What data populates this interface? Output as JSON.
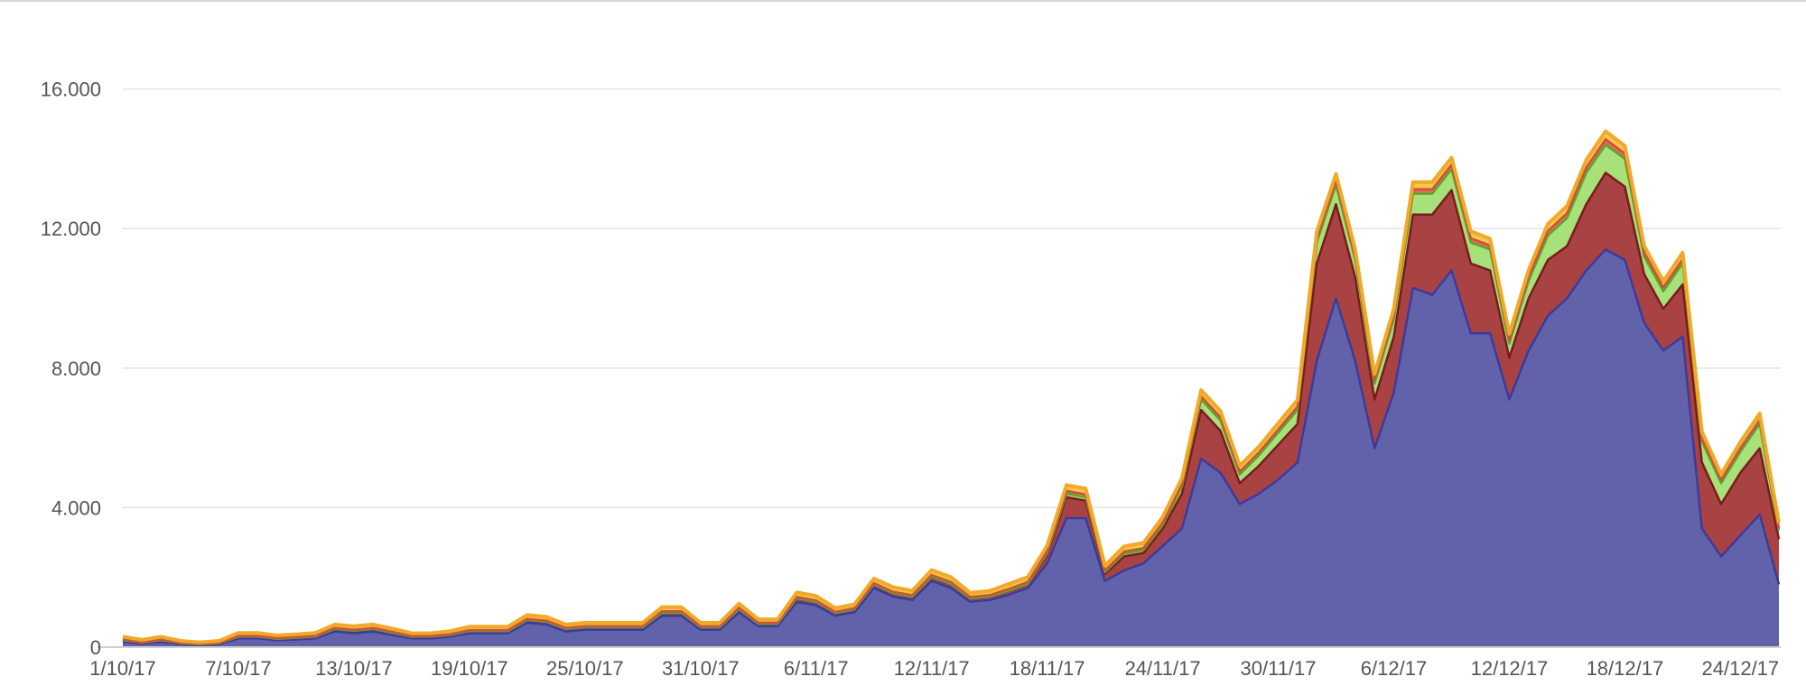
{
  "chart_data": {
    "type": "area",
    "stacked": true,
    "grid": true,
    "legend": "none",
    "ylim": [
      0,
      17000
    ],
    "y_ticks": [
      0,
      4000,
      8000,
      12000,
      16000
    ],
    "y_tick_labels": [
      "0",
      "4.000",
      "8.000",
      "12.000",
      "16.000"
    ],
    "x_tick_labels": [
      "1/10/17",
      "7/10/17",
      "13/10/17",
      "19/10/17",
      "25/10/17",
      "31/10/17",
      "6/11/17",
      "12/11/17",
      "18/11/17",
      "24/11/17",
      "30/11/17",
      "6/12/17",
      "12/12/17",
      "18/12/17",
      "24/12/17"
    ],
    "x_tick_index": [
      0,
      6,
      12,
      18,
      24,
      30,
      36,
      42,
      48,
      54,
      60,
      66,
      72,
      78,
      84
    ],
    "x": [
      "1/10/17",
      "2/10/17",
      "3/10/17",
      "4/10/17",
      "5/10/17",
      "6/10/17",
      "7/10/17",
      "8/10/17",
      "9/10/17",
      "10/10/17",
      "11/10/17",
      "12/10/17",
      "13/10/17",
      "14/10/17",
      "15/10/17",
      "16/10/17",
      "17/10/17",
      "18/10/17",
      "19/10/17",
      "20/10/17",
      "21/10/17",
      "22/10/17",
      "23/10/17",
      "24/10/17",
      "25/10/17",
      "26/10/17",
      "27/10/17",
      "28/10/17",
      "29/10/17",
      "30/10/17",
      "31/10/17",
      "1/11/17",
      "2/11/17",
      "3/11/17",
      "4/11/17",
      "5/11/17",
      "6/11/17",
      "7/11/17",
      "8/11/17",
      "9/11/17",
      "10/11/17",
      "11/11/17",
      "12/11/17",
      "13/11/17",
      "14/11/17",
      "15/11/17",
      "16/11/17",
      "17/11/17",
      "18/11/17",
      "19/11/17",
      "20/11/17",
      "21/11/17",
      "22/11/17",
      "23/11/17",
      "24/11/17",
      "25/11/17",
      "26/11/17",
      "27/11/17",
      "28/11/17",
      "29/11/17",
      "30/11/17",
      "1/12/17",
      "2/12/17",
      "3/12/17",
      "4/12/17",
      "5/12/17",
      "6/12/17",
      "7/12/17",
      "8/12/17",
      "9/12/17",
      "10/12/17",
      "11/12/17",
      "12/12/17",
      "13/12/17",
      "14/12/17",
      "15/12/17",
      "16/12/17",
      "17/12/17",
      "18/12/17",
      "19/12/17",
      "20/12/17",
      "21/12/17",
      "22/12/17",
      "23/12/17",
      "24/12/17",
      "25/12/17",
      "26/12/17"
    ],
    "series": [
      {
        "color": "#6262aa",
        "line_color": "#3b3b9e",
        "values": [
          150,
          100,
          150,
          80,
          60,
          80,
          250,
          250,
          200,
          220,
          250,
          450,
          400,
          450,
          350,
          250,
          250,
          300,
          400,
          400,
          400,
          700,
          650,
          450,
          500,
          500,
          500,
          500,
          900,
          900,
          500,
          500,
          1000,
          600,
          600,
          1300,
          1200,
          900,
          1000,
          1700,
          1450,
          1350,
          1900,
          1700,
          1300,
          1350,
          1500,
          1700,
          2400,
          3700,
          3700,
          1900,
          2200,
          2400,
          2900,
          3400,
          5400,
          5000,
          4100,
          4400,
          4800,
          5300,
          8200,
          10000,
          8200,
          5700,
          7300,
          10300,
          10100,
          10800,
          9000,
          9000,
          7100,
          8500,
          9500,
          10000,
          10800,
          11400,
          11100,
          9300,
          8500,
          8900,
          3400,
          2600,
          3200,
          3800,
          1800
        ]
      },
      {
        "color": "#a94242",
        "line_color": "#7a1c1c",
        "values": [
          50,
          30,
          50,
          30,
          20,
          30,
          50,
          50,
          40,
          50,
          50,
          70,
          70,
          70,
          60,
          50,
          50,
          50,
          60,
          60,
          60,
          80,
          80,
          70,
          70,
          70,
          70,
          70,
          90,
          90,
          70,
          70,
          90,
          70,
          70,
          100,
          100,
          80,
          90,
          100,
          100,
          100,
          120,
          120,
          100,
          100,
          120,
          120,
          250,
          600,
          500,
          200,
          400,
          300,
          500,
          1000,
          1400,
          1200,
          600,
          800,
          1000,
          1100,
          2800,
          2700,
          2400,
          1400,
          1600,
          2100,
          2300,
          2300,
          2000,
          1800,
          1200,
          1500,
          1600,
          1500,
          1900,
          2200,
          2100,
          1400,
          1200,
          1500,
          1900,
          1500,
          1800,
          1900,
          1300
        ]
      },
      {
        "color": "#a8e07a",
        "line_color": "#5aa72c",
        "values": [
          0,
          0,
          0,
          0,
          0,
          0,
          0,
          0,
          0,
          0,
          0,
          0,
          0,
          0,
          0,
          0,
          0,
          0,
          0,
          0,
          0,
          0,
          0,
          0,
          0,
          0,
          0,
          0,
          0,
          0,
          0,
          0,
          0,
          0,
          0,
          0,
          0,
          0,
          0,
          0,
          0,
          0,
          0,
          0,
          0,
          0,
          0,
          0,
          50,
          100,
          100,
          50,
          80,
          80,
          100,
          200,
          300,
          300,
          250,
          300,
          350,
          400,
          600,
          550,
          500,
          450,
          500,
          600,
          600,
          600,
          600,
          600,
          400,
          500,
          700,
          800,
          900,
          800,
          800,
          500,
          500,
          600,
          600,
          600,
          600,
          700,
          250
        ]
      },
      {
        "color": "#e26b5a",
        "line_color": "#d0503c",
        "values": [
          20,
          10,
          20,
          10,
          10,
          10,
          20,
          20,
          20,
          20,
          20,
          30,
          30,
          30,
          30,
          20,
          20,
          20,
          30,
          30,
          30,
          30,
          30,
          30,
          30,
          30,
          30,
          30,
          40,
          40,
          30,
          30,
          40,
          30,
          30,
          40,
          40,
          30,
          30,
          40,
          40,
          40,
          50,
          50,
          40,
          40,
          50,
          50,
          60,
          80,
          80,
          50,
          60,
          60,
          70,
          80,
          90,
          90,
          80,
          80,
          90,
          100,
          110,
          120,
          110,
          100,
          110,
          130,
          130,
          130,
          120,
          120,
          100,
          120,
          130,
          140,
          150,
          160,
          150,
          120,
          110,
          120,
          100,
          90,
          100,
          110,
          60
        ]
      },
      {
        "color": "#f2c94c",
        "line_color": "#f0a928",
        "values": [
          80,
          70,
          80,
          60,
          50,
          60,
          90,
          90,
          80,
          80,
          90,
          100,
          100,
          100,
          90,
          80,
          80,
          90,
          100,
          100,
          100,
          110,
          110,
          100,
          100,
          100,
          100,
          100,
          120,
          120,
          100,
          100,
          120,
          100,
          100,
          130,
          130,
          110,
          110,
          130,
          130,
          130,
          140,
          140,
          120,
          120,
          140,
          140,
          150,
          170,
          170,
          140,
          150,
          150,
          160,
          170,
          180,
          180,
          170,
          170,
          180,
          190,
          200,
          200,
          190,
          180,
          190,
          200,
          200,
          200,
          200,
          190,
          180,
          190,
          200,
          210,
          220,
          230,
          220,
          190,
          180,
          190,
          180,
          170,
          180,
          190,
          150
        ]
      }
    ]
  }
}
